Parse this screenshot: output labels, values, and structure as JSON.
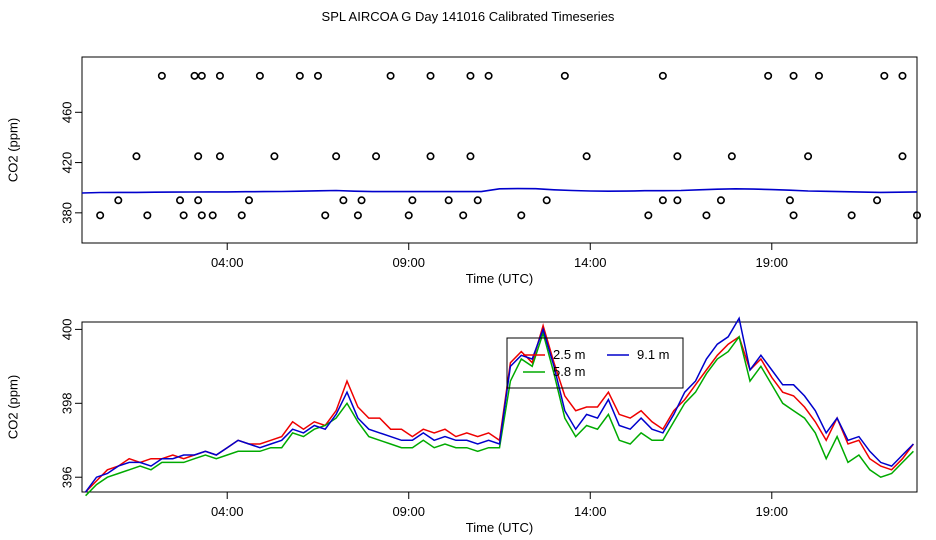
{
  "title": "SPL AIRCOA G  Day 141016  Calibrated Timeseries",
  "chart_data": [
    {
      "type": "scatter",
      "xlabel": "Time (UTC)",
      "ylabel": "CO2 (ppm)",
      "xlim": [
        -4,
        19
      ],
      "ylim": [
        356,
        504
      ],
      "x_ticks": [
        0,
        5,
        10,
        15,
        20
      ],
      "x_tick_labels": [
        "04:00",
        "09:00",
        "14:00",
        "19:00",
        "00:00"
      ],
      "y_ticks": [
        380,
        420,
        460
      ],
      "y_tick_labels": [
        "380",
        "420",
        "460"
      ],
      "grid": false,
      "series": [
        {
          "style": "open-circle",
          "color": "#000000",
          "x": [
            -3.5,
            -3.0,
            -2.5,
            -2.2,
            -1.8,
            -1.3,
            -1.2,
            -0.9,
            -0.8,
            -0.8,
            -0.7,
            -0.7,
            -0.4,
            -0.2,
            -0.2,
            0.4,
            0.6,
            0.9,
            1.3,
            2.0,
            2.5,
            2.7,
            3.0,
            3.2,
            3.6,
            3.7,
            4.1,
            4.5,
            5.0,
            5.1,
            5.6,
            5.6,
            6.1,
            6.5,
            6.7,
            6.7,
            6.9,
            7.2,
            8.1,
            8.8,
            9.3,
            9.9,
            11.6,
            12.0,
            12.0,
            12.4,
            12.4,
            13.2,
            13.6,
            13.9,
            14.9,
            15.5,
            15.6,
            15.6,
            16.0,
            16.3,
            17.2,
            17.9,
            18.1,
            18.6,
            18.6,
            19.0
          ],
          "y": [
            378,
            390,
            425,
            378,
            489,
            390,
            378,
            489,
            425,
            390,
            378,
            489,
            378,
            425,
            489,
            378,
            390,
            489,
            425,
            489,
            489,
            378,
            425,
            390,
            378,
            390,
            425,
            489,
            378,
            390,
            425,
            489,
            390,
            378,
            425,
            489,
            390,
            489,
            378,
            390,
            489,
            425,
            378,
            489,
            390,
            390,
            425,
            378,
            390,
            425,
            489,
            390,
            378,
            489,
            425,
            489,
            378,
            390,
            489,
            425,
            489,
            378
          ]
        },
        {
          "name": "",
          "style": "line",
          "color": "#0000cc",
          "x": [
            -4.0,
            -3.5,
            -3.0,
            -2.5,
            -2.0,
            -1.5,
            -1.0,
            -0.5,
            0.0,
            0.5,
            1.0,
            1.5,
            2.0,
            2.5,
            3.0,
            3.5,
            4.0,
            4.5,
            5.0,
            5.5,
            6.0,
            6.5,
            7.0,
            7.5,
            8.0,
            8.5,
            9.0,
            9.5,
            10.0,
            10.5,
            11.0,
            11.5,
            12.0,
            12.5,
            13.0,
            13.5,
            14.0,
            14.5,
            15.0,
            15.5,
            16.0,
            16.5,
            17.0,
            17.5,
            18.0,
            18.5,
            19.0
          ],
          "y": [
            395.8,
            396.2,
            396.3,
            396.3,
            396.4,
            396.5,
            396.6,
            396.7,
            396.7,
            396.8,
            396.9,
            397.0,
            397.2,
            397.5,
            397.8,
            397.2,
            396.9,
            396.9,
            396.9,
            396.9,
            396.9,
            396.9,
            396.9,
            399.1,
            399.3,
            399.2,
            398.3,
            397.8,
            397.4,
            397.2,
            397.3,
            397.6,
            397.6,
            397.8,
            398.3,
            398.8,
            399.1,
            398.9,
            398.5,
            398.0,
            397.4,
            397.1,
            396.8,
            396.5,
            396.3,
            396.4,
            396.7
          ]
        }
      ]
    },
    {
      "type": "line",
      "xlabel": "Time (UTC)",
      "ylabel": "CO2 (ppm)",
      "xlim": [
        -4,
        19
      ],
      "ylim": [
        395.6,
        400.2
      ],
      "x_ticks": [
        0,
        5,
        10,
        15,
        20
      ],
      "x_tick_labels": [
        "04:00",
        "09:00",
        "14:00",
        "19:00",
        "00:00"
      ],
      "y_ticks": [
        396,
        398,
        400
      ],
      "y_tick_labels": [
        "396",
        "398",
        "400"
      ],
      "grid": false,
      "legend": {
        "position": "top-center",
        "entries": [
          {
            "label": "2.5 m",
            "color": "#ee0000"
          },
          {
            "label": "9.1 m",
            "color": "#0000cc"
          },
          {
            "label": "5.8 m",
            "color": "#00aa00"
          }
        ]
      },
      "x": [
        -3.9,
        -3.6,
        -3.3,
        -3.0,
        -2.7,
        -2.4,
        -2.1,
        -1.8,
        -1.5,
        -1.2,
        -0.9,
        -0.6,
        -0.3,
        0.0,
        0.3,
        0.6,
        0.9,
        1.2,
        1.5,
        1.8,
        2.1,
        2.4,
        2.7,
        3.0,
        3.3,
        3.6,
        3.9,
        4.2,
        4.5,
        4.8,
        5.1,
        5.4,
        5.7,
        6.0,
        6.3,
        6.6,
        6.9,
        7.2,
        7.5,
        7.8,
        8.1,
        8.4,
        8.7,
        9.0,
        9.3,
        9.6,
        9.9,
        10.2,
        10.5,
        10.8,
        11.1,
        11.4,
        11.7,
        12.0,
        12.3,
        12.6,
        12.9,
        13.2,
        13.5,
        13.8,
        14.1,
        14.4,
        14.7,
        15.0,
        15.3,
        15.6,
        15.9,
        16.2,
        16.5,
        16.8,
        17.1,
        17.4,
        17.7,
        18.0,
        18.3,
        18.6,
        18.9
      ],
      "series": [
        {
          "name": "2.5 m",
          "color": "#ee0000",
          "values": [
            395.6,
            395.9,
            396.2,
            396.3,
            396.5,
            396.4,
            396.5,
            396.5,
            396.6,
            396.5,
            396.6,
            396.7,
            396.6,
            396.8,
            397.0,
            396.9,
            396.9,
            397.0,
            397.1,
            397.5,
            397.3,
            397.5,
            397.4,
            397.8,
            398.6,
            397.9,
            397.6,
            397.6,
            397.3,
            397.3,
            397.1,
            397.3,
            397.2,
            397.3,
            397.1,
            397.2,
            397.1,
            397.2,
            397.0,
            399.1,
            399.4,
            399.1,
            400.1,
            399.1,
            398.2,
            397.8,
            397.9,
            397.9,
            398.3,
            397.7,
            397.6,
            397.8,
            397.5,
            397.3,
            397.8,
            398.1,
            398.5,
            398.9,
            399.3,
            399.6,
            399.8,
            398.9,
            399.2,
            398.7,
            398.3,
            398.2,
            397.9,
            397.5,
            397.0,
            397.6,
            396.9,
            397.0,
            396.5,
            396.3,
            396.2,
            396.5,
            396.9
          ]
        },
        {
          "name": "5.8 m",
          "color": "#00aa00",
          "values": [
            395.5,
            395.8,
            396.0,
            396.1,
            396.2,
            396.3,
            396.2,
            396.4,
            396.4,
            396.4,
            396.5,
            396.6,
            396.5,
            396.6,
            396.7,
            396.7,
            396.7,
            396.8,
            396.8,
            397.2,
            397.1,
            397.3,
            397.4,
            397.6,
            398.0,
            397.5,
            397.1,
            397.0,
            396.9,
            396.8,
            396.8,
            397.0,
            396.8,
            396.9,
            396.8,
            396.8,
            396.7,
            396.8,
            396.8,
            398.6,
            399.2,
            399.0,
            399.9,
            398.8,
            397.6,
            397.1,
            397.4,
            397.3,
            397.7,
            397.0,
            396.9,
            397.2,
            397.0,
            397.0,
            397.5,
            398.0,
            398.3,
            398.8,
            399.2,
            399.4,
            399.8,
            398.6,
            399.0,
            398.5,
            398.0,
            397.8,
            397.6,
            397.2,
            396.5,
            397.1,
            396.4,
            396.6,
            396.2,
            396.0,
            396.1,
            396.4,
            396.7
          ]
        },
        {
          "name": "9.1 m",
          "color": "#0000cc",
          "values": [
            395.6,
            396.0,
            396.1,
            396.3,
            396.4,
            396.4,
            396.3,
            396.5,
            396.5,
            396.6,
            396.6,
            396.7,
            396.6,
            396.8,
            397.0,
            396.9,
            396.8,
            396.9,
            397.0,
            397.3,
            397.2,
            397.4,
            397.3,
            397.7,
            398.3,
            397.6,
            397.3,
            397.2,
            397.1,
            397.0,
            397.0,
            397.2,
            397.0,
            397.1,
            397.0,
            397.0,
            396.9,
            397.0,
            396.9,
            399.0,
            399.3,
            399.2,
            400.0,
            399.0,
            397.8,
            397.3,
            397.7,
            397.6,
            398.1,
            397.4,
            397.3,
            397.6,
            397.3,
            397.2,
            397.7,
            398.3,
            398.6,
            399.2,
            399.6,
            399.8,
            400.3,
            398.9,
            399.3,
            398.9,
            398.5,
            398.5,
            398.2,
            397.8,
            397.2,
            397.6,
            397.0,
            397.1,
            396.7,
            396.4,
            396.3,
            396.6,
            396.9
          ]
        }
      ]
    }
  ]
}
